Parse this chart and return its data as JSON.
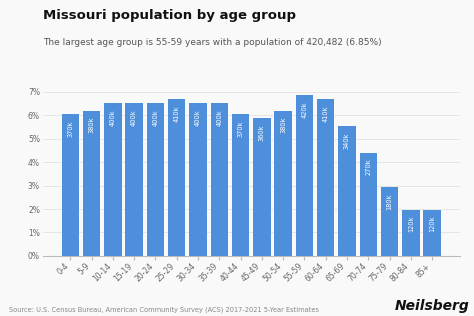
{
  "title": "Missouri population by age group",
  "subtitle": "The largest age group is 55-59 years with a population of 420,482 (6.85%)",
  "source": "Source: U.S. Census Bureau, American Community Survey (ACS) 2017-2021 5-Year Estimates",
  "branding": "Neilsberg",
  "categories": [
    "0-4",
    "5-9",
    "10-14",
    "15-19",
    "20-24",
    "25-29",
    "30-34",
    "35-39",
    "40-44",
    "45-49",
    "50-54",
    "55-59",
    "60-64",
    "65-69",
    "70-74",
    "75-79",
    "80-84",
    "85+"
  ],
  "values": [
    6.03,
    6.19,
    6.51,
    6.51,
    6.51,
    6.68,
    6.51,
    6.51,
    6.03,
    5.86,
    6.19,
    6.84,
    6.68,
    5.53,
    4.4,
    2.93,
    1.96,
    1.96
  ],
  "labels": [
    "370k",
    "380k",
    "400k",
    "400k",
    "400k",
    "410k",
    "400k",
    "400k",
    "370k",
    "360k",
    "380k",
    "420k",
    "410k",
    "340k",
    "270k",
    "180k",
    "120k",
    "120k"
  ],
  "bar_color": "#4d8fdb",
  "background_color": "#f9f9f9",
  "ylim": [
    0,
    7
  ],
  "ytick_labels": [
    "0%",
    "1%",
    "2%",
    "3%",
    "4%",
    "5%",
    "6%",
    "7%"
  ],
  "ytick_values": [
    0,
    1,
    2,
    3,
    4,
    5,
    6,
    7
  ],
  "title_fontsize": 9.5,
  "subtitle_fontsize": 6.5,
  "label_fontsize": 4.8,
  "tick_fontsize": 5.5,
  "source_fontsize": 4.8,
  "branding_fontsize": 10
}
